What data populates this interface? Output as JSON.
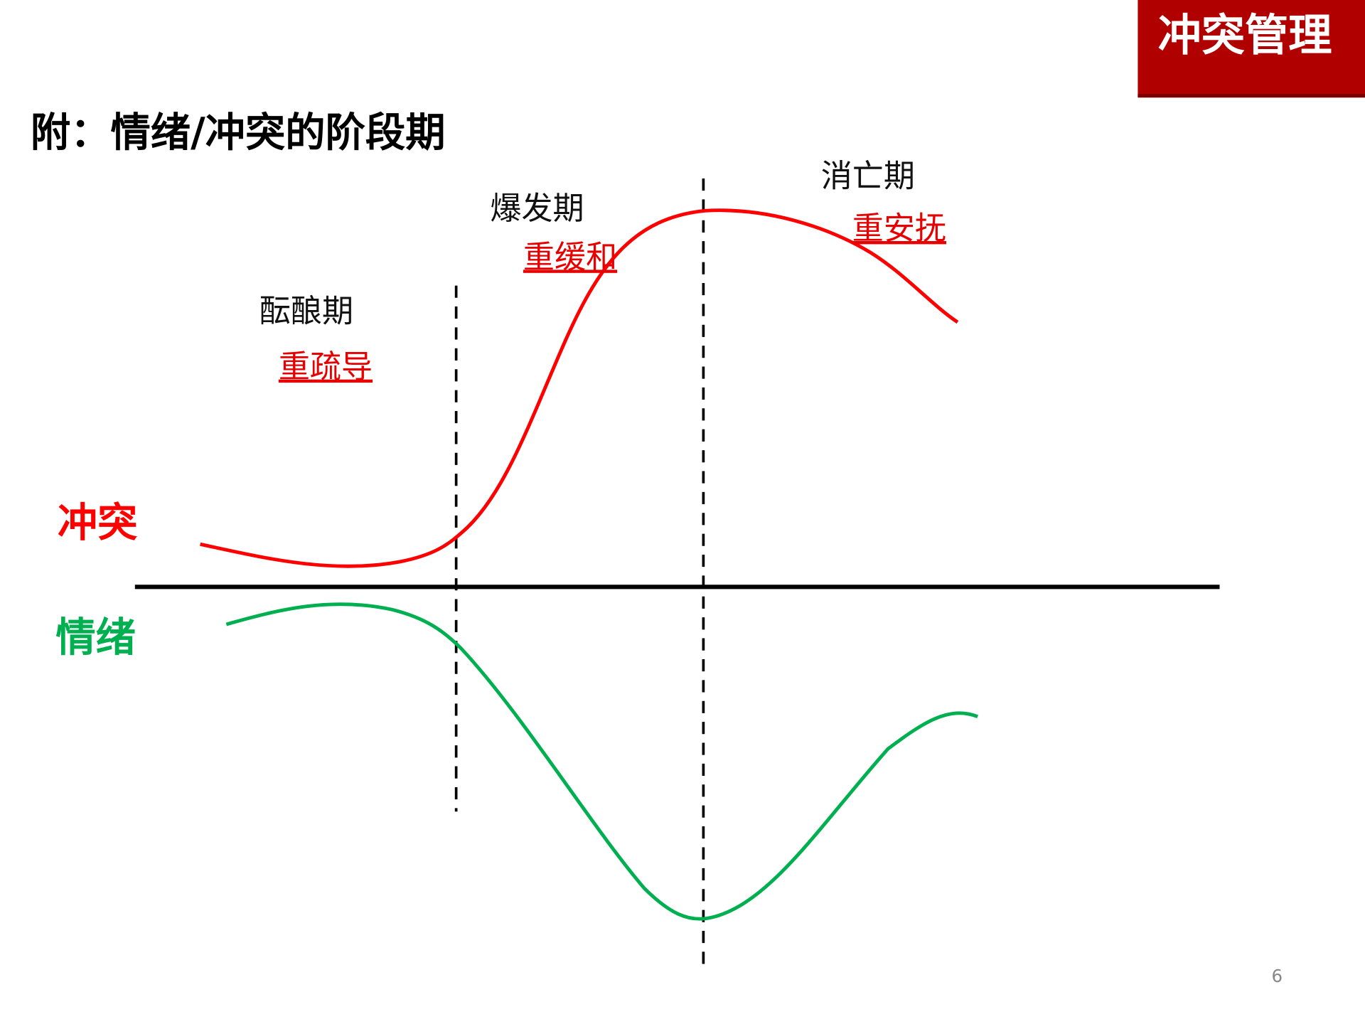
{
  "header": {
    "badge": "冲突管理",
    "title": "附：情绪/冲突的阶段期"
  },
  "stages": [
    {
      "name": "酝酿期",
      "strategy": "重疏导"
    },
    {
      "name": "爆发期",
      "strategy": "重缓和"
    },
    {
      "name": "消亡期",
      "strategy": "重安抚"
    }
  ],
  "curves": {
    "conflict": "冲突",
    "emotion": "情绪"
  },
  "page_number": "6"
}
